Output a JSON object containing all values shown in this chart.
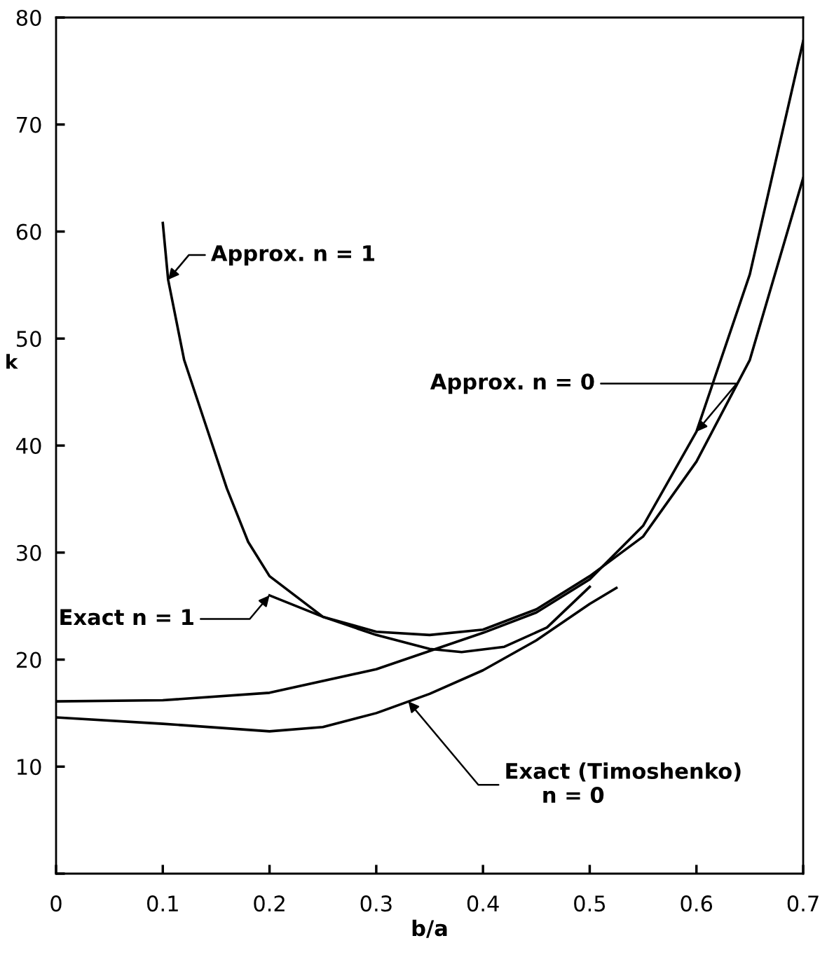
{
  "chart_data": {
    "type": "line",
    "xlabel": "b/a",
    "ylabel": "k",
    "xlim": [
      0,
      0.7
    ],
    "ylim": [
      0,
      80
    ],
    "xticks": [
      0,
      0.1,
      0.2,
      0.3,
      0.4,
      0.5,
      0.6,
      0.7
    ],
    "yticks": [
      {
        "value": 0,
        "label": null
      },
      10,
      20,
      30,
      40,
      50,
      60,
      70,
      80
    ],
    "grid": false,
    "legend": false,
    "marker": "none",
    "line_style": "solid",
    "series": [
      {
        "color": "#000000",
        "x": [
          0.1,
          0.105,
          0.12,
          0.14,
          0.16,
          0.18,
          0.2,
          0.25,
          0.3,
          0.35,
          0.4,
          0.45,
          0.5,
          0.55,
          0.6,
          0.65,
          0.7
        ],
        "values": [
          60.8,
          55.5,
          48,
          42,
          36,
          31,
          27.8,
          24,
          22.6,
          22.3,
          22.8,
          24.7,
          27.8,
          31.5,
          38.5,
          48,
          65
        ]
      },
      {
        "color": "#000000",
        "x": [
          0,
          0.1,
          0.2,
          0.3,
          0.35,
          0.4,
          0.45,
          0.5,
          0.55,
          0.6,
          0.65,
          0.7
        ],
        "values": [
          16.1,
          16.2,
          16.9,
          19.1,
          20.8,
          22.5,
          24.4,
          27.5,
          32.5,
          41.3,
          56,
          77.8
        ]
      },
      {
        "color": "#000000",
        "x": [
          0.2,
          0.25,
          0.3,
          0.35,
          0.38,
          0.42,
          0.46,
          0.5
        ],
        "values": [
          26,
          24,
          22.3,
          21,
          20.7,
          21.2,
          23,
          26.8
        ]
      },
      {
        "color": "#000000",
        "x": [
          0,
          0.1,
          0.2,
          0.25,
          0.3,
          0.35,
          0.4,
          0.45,
          0.5,
          0.525
        ],
        "values": [
          14.6,
          14,
          13.3,
          13.7,
          15,
          16.8,
          19,
          21.8,
          25.2,
          26.7
        ]
      }
    ],
    "annotations": [
      {
        "text": "Approx. n = 1",
        "x": 0.105,
        "y": 55.5
      },
      {
        "text": "Approx. n = 0",
        "x": 0.6,
        "y": 41.3
      },
      {
        "text": "Exact n = 1",
        "x": 0.2,
        "y": 26
      },
      {
        "text": "Exact (Timoshenko)\n     n = 0",
        "x": 0.33,
        "y": 16.1
      }
    ]
  }
}
